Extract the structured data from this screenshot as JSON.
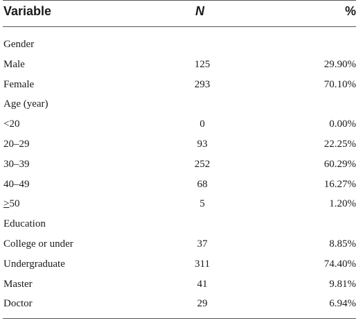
{
  "header": {
    "variable": "Variable",
    "n": "N",
    "percent": "%"
  },
  "rows": [
    {
      "label": "Gender",
      "n": "",
      "percent": ""
    },
    {
      "label": "Male",
      "n": "125",
      "percent": "29.90%"
    },
    {
      "label": "Female",
      "n": "293",
      "percent": "70.10%"
    },
    {
      "label": "Age (year)",
      "n": "",
      "percent": ""
    },
    {
      "label": "<20",
      "n": "0",
      "percent": "0.00%"
    },
    {
      "label": "20–29",
      "n": "93",
      "percent": "22.25%"
    },
    {
      "label": "30–39",
      "n": "252",
      "percent": "60.29%"
    },
    {
      "label": "40–49",
      "n": "68",
      "percent": "16.27%"
    },
    {
      "label_prefix": ">",
      "label_suffix": "50",
      "n": "5",
      "percent": "1.20%"
    },
    {
      "label": "Education",
      "n": "",
      "percent": ""
    },
    {
      "label": "College or under",
      "n": "37",
      "percent": "8.85%"
    },
    {
      "label": "Undergraduate",
      "n": "311",
      "percent": "74.40%"
    },
    {
      "label": "Master",
      "n": "41",
      "percent": "9.81%"
    },
    {
      "label": "Doctor",
      "n": "29",
      "percent": "6.94%"
    }
  ]
}
